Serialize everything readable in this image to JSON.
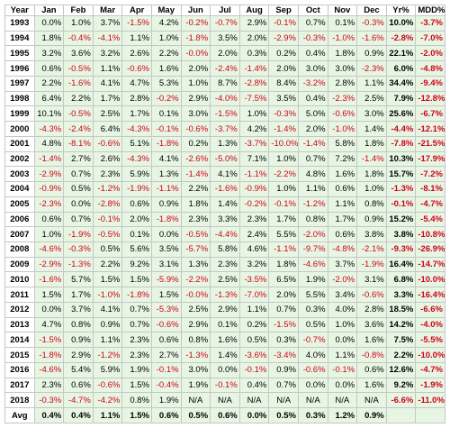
{
  "table": {
    "headers": [
      "Year",
      "Jan",
      "Feb",
      "Mar",
      "Apr",
      "May",
      "Jun",
      "Jul",
      "Aug",
      "Sep",
      "Oct",
      "Nov",
      "Dec",
      "Yr%",
      "MDD%"
    ],
    "rows": [
      [
        "1993",
        "0.0%",
        "1.0%",
        "3.7%",
        "-1.5%",
        "4.2%",
        "-0.2%",
        "-0.7%",
        "2.9%",
        "-0.1%",
        "0.7%",
        "0.1%",
        "-0.3%",
        "10.0%",
        "-3.7%"
      ],
      [
        "1994",
        "1.8%",
        "-0.4%",
        "-4.1%",
        "1.1%",
        "1.0%",
        "-1.8%",
        "3.5%",
        "2.0%",
        "-2.9%",
        "-0.3%",
        "-1.0%",
        "-1.6%",
        "-2.8%",
        "-7.0%"
      ],
      [
        "1995",
        "3.2%",
        "3.6%",
        "3.2%",
        "2.6%",
        "2.2%",
        "-0.0%",
        "2.0%",
        "0.3%",
        "0.2%",
        "0.4%",
        "1.8%",
        "0.9%",
        "22.1%",
        "-2.0%"
      ],
      [
        "1996",
        "0.6%",
        "-0.5%",
        "1.1%",
        "-0.6%",
        "1.6%",
        "2.0%",
        "-2.4%",
        "-1.4%",
        "2.0%",
        "3.0%",
        "3.0%",
        "-2.3%",
        "6.0%",
        "-4.8%"
      ],
      [
        "1997",
        "2.2%",
        "-1.6%",
        "4.1%",
        "4.7%",
        "5.3%",
        "1.0%",
        "8.7%",
        "-2.8%",
        "8.4%",
        "-3.2%",
        "2.8%",
        "1.1%",
        "34.4%",
        "-9.4%"
      ],
      [
        "1998",
        "6.4%",
        "2.2%",
        "1.7%",
        "2.8%",
        "-0.2%",
        "2.9%",
        "-4.0%",
        "-7.5%",
        "3.5%",
        "0.4%",
        "-2.3%",
        "2.5%",
        "7.9%",
        "-12.8%"
      ],
      [
        "1999",
        "10.1%",
        "-0.5%",
        "2.5%",
        "1.7%",
        "0.1%",
        "3.0%",
        "-1.5%",
        "1.0%",
        "-0.3%",
        "5.0%",
        "-0.6%",
        "3.0%",
        "25.6%",
        "-6.7%"
      ],
      [
        "2000",
        "-4.3%",
        "-2.4%",
        "6.4%",
        "-4.3%",
        "-0.1%",
        "-0.6%",
        "-3.7%",
        "4.2%",
        "-1.4%",
        "2.0%",
        "-1.0%",
        "1.4%",
        "-4.4%",
        "-12.1%"
      ],
      [
        "2001",
        "4.8%",
        "-8.1%",
        "-0.6%",
        "5.1%",
        "-1.8%",
        "0.2%",
        "1.3%",
        "-3.7%",
        "-10.0%",
        "-1.4%",
        "5.8%",
        "1.8%",
        "-7.8%",
        "-21.5%"
      ],
      [
        "2002",
        "-1.4%",
        "2.7%",
        "2.6%",
        "-4.3%",
        "4.1%",
        "-2.6%",
        "-5.0%",
        "7.1%",
        "1.0%",
        "0.7%",
        "7.2%",
        "-1.4%",
        "10.3%",
        "-17.9%"
      ],
      [
        "2003",
        "-2.9%",
        "0.7%",
        "2.3%",
        "5.9%",
        "1.3%",
        "-1.4%",
        "4.1%",
        "-1.1%",
        "-2.2%",
        "4.8%",
        "1.6%",
        "1.8%",
        "15.7%",
        "-7.2%"
      ],
      [
        "2004",
        "-0.9%",
        "0.5%",
        "-1.2%",
        "-1.9%",
        "-1.1%",
        "2.2%",
        "-1.6%",
        "-0.9%",
        "1.0%",
        "1.1%",
        "0.6%",
        "1.0%",
        "-1.3%",
        "-8.1%"
      ],
      [
        "2005",
        "-2.3%",
        "0.0%",
        "-2.8%",
        "0.6%",
        "0.9%",
        "1.8%",
        "1.4%",
        "-0.2%",
        "-0.1%",
        "-1.2%",
        "1.1%",
        "0.8%",
        "-0.1%",
        "-4.7%"
      ],
      [
        "2006",
        "0.6%",
        "0.7%",
        "-0.1%",
        "2.0%",
        "-1.8%",
        "2.3%",
        "3.3%",
        "2.3%",
        "1.7%",
        "0.8%",
        "1.7%",
        "0.9%",
        "15.2%",
        "-5.4%"
      ],
      [
        "2007",
        "1.0%",
        "-1.9%",
        "-0.5%",
        "0.1%",
        "0.0%",
        "-0.5%",
        "-4.4%",
        "2.4%",
        "5.5%",
        "-2.0%",
        "0.6%",
        "3.8%",
        "3.8%",
        "-10.8%"
      ],
      [
        "2008",
        "-4.6%",
        "-0.3%",
        "0.5%",
        "5.6%",
        "3.5%",
        "-5.7%",
        "5.8%",
        "4.6%",
        "-1.1%",
        "-9.7%",
        "-4.8%",
        "-2.1%",
        "-9.3%",
        "-26.9%"
      ],
      [
        "2009",
        "-2.9%",
        "-1.3%",
        "2.2%",
        "9.2%",
        "3.1%",
        "1.3%",
        "2.3%",
        "3.2%",
        "1.8%",
        "-4.6%",
        "3.7%",
        "-1.9%",
        "16.4%",
        "-14.7%"
      ],
      [
        "2010",
        "-1.6%",
        "5.7%",
        "1.5%",
        "1.5%",
        "-5.9%",
        "-2.2%",
        "2.5%",
        "-3.5%",
        "6.5%",
        "1.9%",
        "-2.0%",
        "3.1%",
        "6.8%",
        "-10.0%"
      ],
      [
        "2011",
        "1.5%",
        "1.7%",
        "-1.0%",
        "-1.8%",
        "1.5%",
        "-0.0%",
        "-1.3%",
        "-7.0%",
        "2.0%",
        "5.5%",
        "3.4%",
        "-0.6%",
        "3.3%",
        "-16.4%"
      ],
      [
        "2012",
        "0.0%",
        "3.7%",
        "4.1%",
        "0.7%",
        "-5.3%",
        "2.5%",
        "2.9%",
        "1.1%",
        "0.7%",
        "0.3%",
        "4.0%",
        "2.8%",
        "18.5%",
        "-6.6%"
      ],
      [
        "2013",
        "4.7%",
        "0.8%",
        "0.9%",
        "0.7%",
        "-0.6%",
        "2.9%",
        "0.1%",
        "0.2%",
        "-1.5%",
        "0.5%",
        "1.0%",
        "3.6%",
        "14.2%",
        "-4.0%"
      ],
      [
        "2014",
        "-1.5%",
        "0.9%",
        "1.1%",
        "2.3%",
        "0.6%",
        "0.8%",
        "1.6%",
        "0.5%",
        "0.3%",
        "-0.7%",
        "0.0%",
        "1.6%",
        "7.5%",
        "-5.5%"
      ],
      [
        "2015",
        "-1.8%",
        "2.9%",
        "-1.2%",
        "2.3%",
        "2.7%",
        "-1.3%",
        "1.4%",
        "-3.6%",
        "-3.4%",
        "4.0%",
        "1.1%",
        "-0.8%",
        "2.2%",
        "-10.0%"
      ],
      [
        "2016",
        "-4.6%",
        "5.4%",
        "5.9%",
        "1.9%",
        "-0.1%",
        "3.0%",
        "0.0%",
        "-0.1%",
        "0.9%",
        "-0.6%",
        "-0.1%",
        "0.6%",
        "12.6%",
        "-4.7%"
      ],
      [
        "2017",
        "2.3%",
        "0.6%",
        "-0.6%",
        "1.5%",
        "-0.4%",
        "1.9%",
        "-0.1%",
        "0.4%",
        "0.7%",
        "0.0%",
        "0.0%",
        "1.6%",
        "9.2%",
        "-1.9%"
      ],
      [
        "2018",
        "-0.3%",
        "-4.7%",
        "-4.2%",
        "0.8%",
        "1.9%",
        "N/A",
        "N/A",
        "N/A",
        "N/A",
        "N/A",
        "N/A",
        "N/A",
        "-6.6%",
        "-11.0%"
      ],
      [
        "Avg",
        "0.4%",
        "0.4%",
        "1.1%",
        "1.5%",
        "0.6%",
        "0.5%",
        "0.6%",
        "0.0%",
        "0.5%",
        "0.3%",
        "1.2%",
        "0.9%",
        "",
        ""
      ]
    ]
  },
  "colors": {
    "cell_bg": "#e7f6e3",
    "negative": "#d0021b",
    "border": "#c6c6c6"
  }
}
